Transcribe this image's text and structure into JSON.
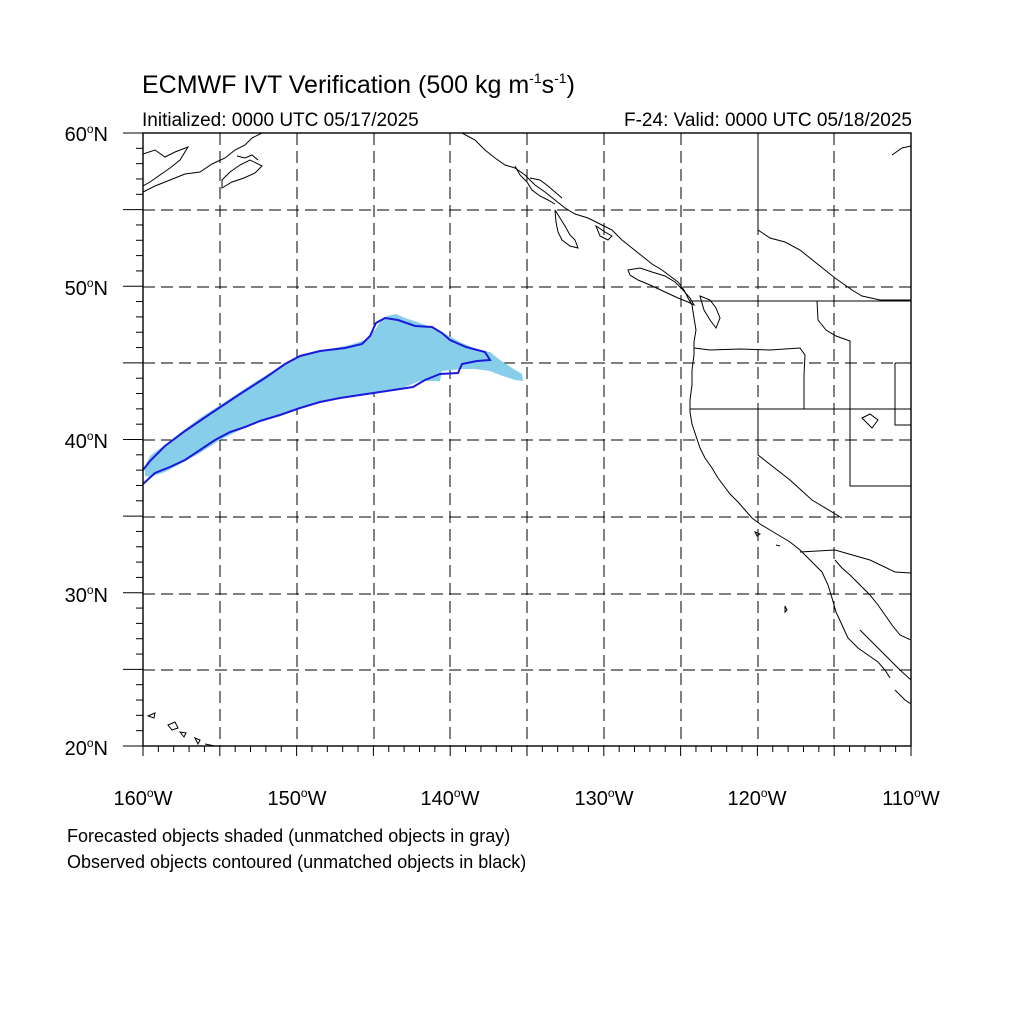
{
  "title": {
    "prefix": "ECMWF IVT Verification (500 kg m",
    "exp1": "-1",
    "mid": "s",
    "exp2": "-1",
    "suffix": ")"
  },
  "initialized": "Initialized: 0000 UTC 05/17/2025",
  "valid": "F-24: Valid: 0000 UTC 05/18/2025",
  "degree_symbol": "o",
  "lat_labels": [
    {
      "num": "60",
      "hem": "N"
    },
    {
      "num": "50",
      "hem": "N"
    },
    {
      "num": "40",
      "hem": "N"
    },
    {
      "num": "30",
      "hem": "N"
    },
    {
      "num": "20",
      "hem": "N"
    }
  ],
  "lon_labels": [
    {
      "num": "160",
      "hem": "W"
    },
    {
      "num": "150",
      "hem": "W"
    },
    {
      "num": "140",
      "hem": "W"
    },
    {
      "num": "130",
      "hem": "W"
    },
    {
      "num": "120",
      "hem": "W"
    },
    {
      "num": "110",
      "hem": "W"
    }
  ],
  "footnotes": {
    "line1": "Forecasted objects shaded (unmatched objects in gray)",
    "line2": "Observed objects contoured (unmatched objects in black)"
  },
  "colors": {
    "forecast_fill": "#87CEEB",
    "observed_contour": "#1A1ADC",
    "coastline": "#000000",
    "grid": "#000000"
  }
}
